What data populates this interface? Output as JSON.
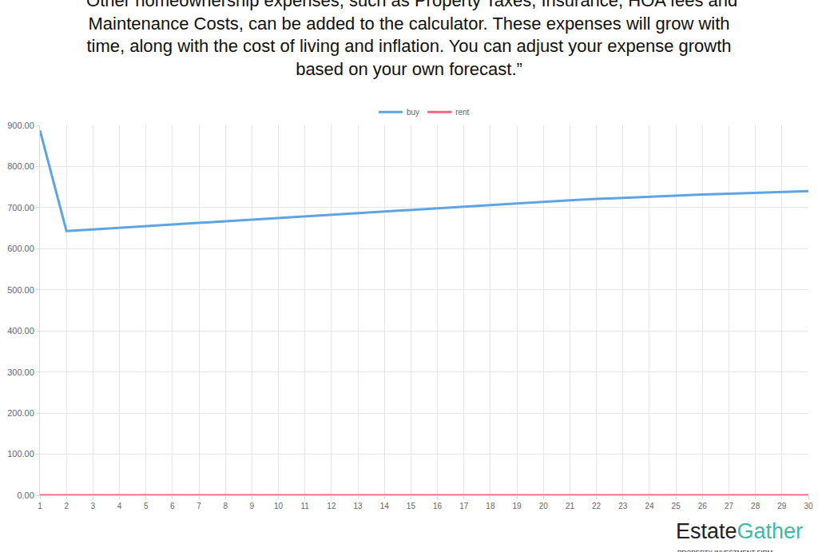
{
  "chart_data": {
    "type": "line",
    "title": "“Other homeownership expenses, such as Property Taxes, Insurance, HOA fees and\nMaintenance Costs, can be added to the calculator. These expenses will grow with\ntime, along with the cost of living and inflation. You can adjust your expense growth\nbased on your own forecast.”",
    "x": [
      1,
      2,
      3,
      4,
      5,
      6,
      7,
      8,
      9,
      10,
      11,
      12,
      13,
      14,
      15,
      16,
      17,
      18,
      19,
      20,
      21,
      22,
      23,
      24,
      25,
      26,
      27,
      28,
      29,
      30
    ],
    "series": [
      {
        "name": "buy",
        "color": "#5ea4e3",
        "values": [
          888,
          643,
          647,
          651,
          655,
          659,
          663,
          667,
          671,
          675,
          679,
          683,
          687,
          691,
          695,
          699,
          703,
          707,
          711,
          714,
          718,
          721,
          724,
          727,
          730,
          732,
          734,
          736,
          738,
          740
        ]
      },
      {
        "name": "rent",
        "color": "#ff6384",
        "values": [
          0,
          0,
          0,
          0,
          0,
          0,
          0,
          0,
          0,
          0,
          0,
          0,
          0,
          0,
          0,
          0,
          0,
          0,
          0,
          0,
          0,
          0,
          0,
          0,
          0,
          0,
          0,
          0,
          0,
          0
        ]
      }
    ],
    "xlim": [
      1,
      30
    ],
    "xticks": [
      1,
      2,
      3,
      4,
      5,
      6,
      7,
      8,
      9,
      10,
      11,
      12,
      13,
      14,
      15,
      16,
      17,
      18,
      19,
      20,
      21,
      22,
      23,
      24,
      25,
      26,
      27,
      28,
      29,
      30
    ],
    "ylim": [
      0,
      900
    ],
    "yticks": [
      {
        "value": 0,
        "label": "0.00"
      },
      {
        "value": 100,
        "label": "100.00"
      },
      {
        "value": 200,
        "label": "200.00"
      },
      {
        "value": 300,
        "label": "300.00"
      },
      {
        "value": 400,
        "label": "400.00"
      },
      {
        "value": 500,
        "label": "500.00"
      },
      {
        "value": 600,
        "label": "600.00"
      },
      {
        "value": 700,
        "label": "700.00"
      },
      {
        "value": 800,
        "label": "800.00"
      },
      {
        "value": 900,
        "label": "900.00"
      }
    ],
    "grid": true,
    "legend": "top",
    "annotations": [
      "EstateGather",
      "PROPERTY INVESTMENT FIRM"
    ]
  }
}
